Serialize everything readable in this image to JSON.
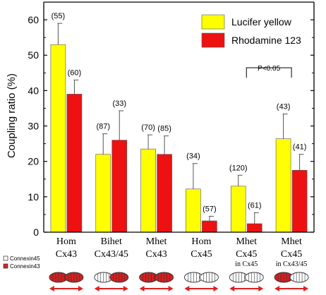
{
  "chart_data": {
    "type": "bar",
    "ylabel": "Coupling ratio (%)",
    "ylim": [
      0,
      65
    ],
    "yticks": [
      0,
      10,
      20,
      30,
      40,
      50,
      60
    ],
    "categories": [
      {
        "line1": "Hom",
        "line2": "Cx43",
        "line3": ""
      },
      {
        "line1": "Bihet",
        "line2": "Cx43/45",
        "line3": ""
      },
      {
        "line1": "Mhet",
        "line2": "Cx43",
        "line3": ""
      },
      {
        "line1": "Hom",
        "line2": "Cx45",
        "line3": ""
      },
      {
        "line1": "Mhet",
        "line2": "Cx45",
        "line3": "in Cx45"
      },
      {
        "line1": "Mhet",
        "line2": "Cx45",
        "line3": "in Cx43/45"
      }
    ],
    "series": [
      {
        "name": "Lucifer yellow",
        "color": "#ffff00",
        "values": [
          53,
          22,
          23.5,
          12.2,
          13,
          26.4
        ],
        "errors": [
          6,
          5.8,
          4,
          7.2,
          3.1,
          7
        ],
        "n": [
          "(55)",
          "(87)",
          "(70)",
          "(34)",
          "(120)",
          "(43)"
        ]
      },
      {
        "name": "Rhodamine 123",
        "color": "#ee1111",
        "values": [
          39,
          26,
          22,
          3.2,
          2.4,
          17.5
        ],
        "errors": [
          4,
          8.3,
          5.2,
          1.3,
          3.1,
          4.5
        ],
        "n": [
          "(60)",
          "(33)",
          "(85)",
          "(57)",
          "(61)",
          "(41)"
        ]
      }
    ],
    "legend_position": "top-right",
    "significance": {
      "text": "P<0.05",
      "from_category": 4,
      "to_category": 5
    }
  },
  "connexin_legend": {
    "items": [
      {
        "label": "Connexin45",
        "color": "#ffffff"
      },
      {
        "label": "Connexin43",
        "color": "#d42020"
      }
    ]
  },
  "pair_icons": [
    {
      "left": "red",
      "right": "red"
    },
    {
      "left": "white",
      "right": "red"
    },
    {
      "left": "red",
      "right": "red"
    },
    {
      "left": "white",
      "right": "white"
    },
    {
      "left": "white",
      "right": "white"
    },
    {
      "left": "red",
      "right": "white"
    }
  ]
}
